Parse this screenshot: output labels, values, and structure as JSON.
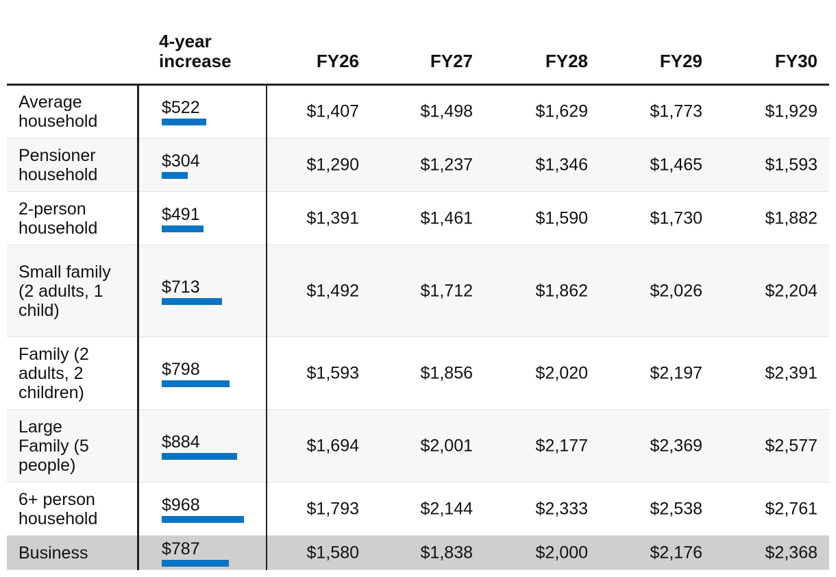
{
  "table": {
    "header": [
      "4-year increase",
      "FY26",
      "FY27",
      "FY28",
      "FY29",
      "FY30"
    ],
    "rows": [
      {
        "label": "Average household",
        "increase": 522,
        "increase_label": "$522",
        "values": [
          "$1,407",
          "$1,498",
          "$1,629",
          "$1,773",
          "$1,929"
        ]
      },
      {
        "label": "Pensioner household",
        "increase": 304,
        "increase_label": "$304",
        "values": [
          "$1,290",
          "$1,237",
          "$1,346",
          "$1,465",
          "$1,593"
        ]
      },
      {
        "label": "2-person household",
        "increase": 491,
        "increase_label": "$491",
        "values": [
          "$1,391",
          "$1,461",
          "$1,590",
          "$1,730",
          "$1,882"
        ]
      },
      {
        "label": "Small family (2 adults, 1 child)",
        "increase": 713,
        "increase_label": "$713",
        "values": [
          "$1,492",
          "$1,712",
          "$1,862",
          "$2,026",
          "$2,204"
        ]
      },
      {
        "label": "Family (2 adults, 2 children)",
        "increase": 798,
        "increase_label": "$798",
        "values": [
          "$1,593",
          "$1,856",
          "$2,020",
          "$2,197",
          "$2,391"
        ]
      },
      {
        "label": "Large Family (5 people)",
        "increase": 884,
        "increase_label": "$884",
        "values": [
          "$1,694",
          "$2,001",
          "$2,177",
          "$2,369",
          "$2,577"
        ]
      },
      {
        "label": "6+ person household",
        "increase": 968,
        "increase_label": "$968",
        "values": [
          "$1,793",
          "$2,144",
          "$2,333",
          "$2,538",
          "$2,761"
        ]
      },
      {
        "label": "Business",
        "increase": 787,
        "increase_label": "$787",
        "values": [
          "$1,580",
          "$1,838",
          "$2,000",
          "$2,176",
          "$2,368"
        ]
      }
    ]
  }
}
